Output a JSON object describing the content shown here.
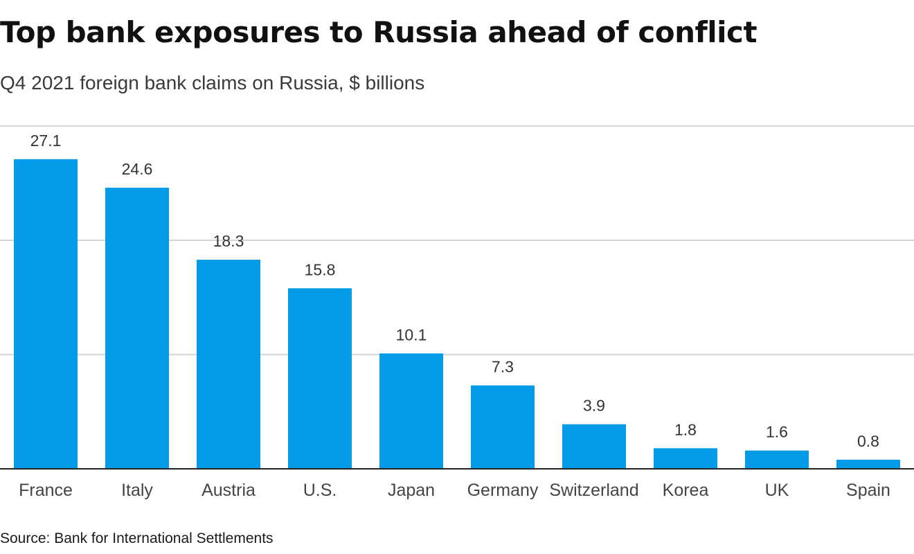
{
  "header": {
    "title": "Top bank exposures to Russia ahead of conflict",
    "subtitle": "Q4 2021 foreign bank claims on Russia, $ billions"
  },
  "footer": {
    "source": "Source: Bank for International Settlements"
  },
  "colors": {
    "bar": "#039be5",
    "grid": "#c8c8c8",
    "baseline": "#222222"
  },
  "chart_data": {
    "type": "bar",
    "title": "Top bank exposures to Russia ahead of conflict",
    "subtitle": "Q4 2021 foreign bank claims on Russia, $ billions",
    "categories": [
      "France",
      "Italy",
      "Austria",
      "U.S.",
      "Japan",
      "Germany",
      "Switzerland",
      "Korea",
      "UK",
      "Spain"
    ],
    "values": [
      27.1,
      24.6,
      18.3,
      15.8,
      10.1,
      7.3,
      3.9,
      1.8,
      1.6,
      0.8
    ],
    "value_labels": [
      "27.1",
      "24.6",
      "18.3",
      "15.8",
      "10.1",
      "7.3",
      "3.9",
      "1.8",
      "1.6",
      "0.8"
    ],
    "xlabel": "",
    "ylabel": "",
    "ylim": [
      0,
      30
    ],
    "gridlines": [
      10,
      20,
      30
    ],
    "grid": true,
    "legend": "none"
  }
}
